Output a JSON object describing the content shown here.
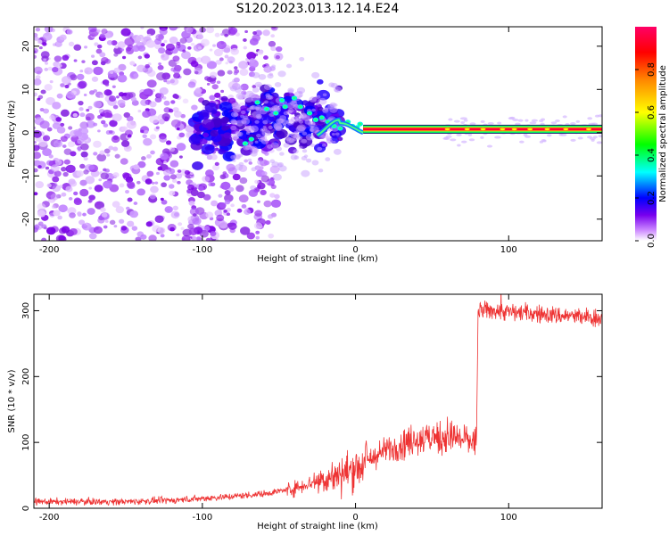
{
  "title": "S120.2023.013.12.14.E24",
  "chart_data": [
    {
      "type": "heatmap",
      "xlabel": "Height of straight line (km)",
      "ylabel": "Frequency (Hz)",
      "xlim": [
        -210,
        161
      ],
      "ylim": [
        -25,
        24.5
      ],
      "xticks": [
        -200,
        -100,
        0,
        100
      ],
      "yticks": [
        -20,
        -10,
        0,
        10,
        20
      ],
      "grid": false,
      "colorbar": {
        "label": "Normalized spectral amplitude",
        "range": [
          0.0,
          1.0
        ],
        "ticks": [
          0.0,
          0.2,
          0.4,
          0.6,
          0.8
        ],
        "colors": [
          "#ffffff",
          "#cc88ff",
          "#7700ee",
          "#0000ff",
          "#00ffff",
          "#00ff00",
          "#ffff00",
          "#ff8800",
          "#ff0000",
          "#ff0066"
        ]
      },
      "noise_region_x": [
        -210,
        -80
      ],
      "features": [
        {
          "x": [
            5,
            161
          ],
          "y": 0.8,
          "amplitude": 0.95,
          "shape": "constant tone line"
        },
        {
          "x": [
            -10,
            5
          ],
          "y": [
            1,
            3
          ],
          "amplitude": 0.45,
          "shape": "curved segment"
        },
        {
          "x": [
            -70,
            -10
          ],
          "y": [
            -5,
            9
          ],
          "amplitude": 0.35,
          "shape": "scattered blobs"
        }
      ]
    },
    {
      "type": "line",
      "xlabel": "Height of straight line (km)",
      "ylabel": "SNR (10 * v/v)",
      "xlim": [
        -210,
        161
      ],
      "ylim": [
        0,
        325
      ],
      "xticks": [
        -200,
        -100,
        0,
        100
      ],
      "yticks": [
        0,
        100,
        200,
        300
      ],
      "grid": false,
      "color": "#ee3333",
      "x": [
        -210,
        -180,
        -150,
        -120,
        -100,
        -80,
        -60,
        -40,
        -30,
        -20,
        -10,
        0,
        10,
        20,
        30,
        40,
        50,
        60,
        70,
        79,
        80,
        90,
        100,
        110,
        120,
        130,
        140,
        150,
        161
      ],
      "y": [
        10,
        10,
        10,
        12,
        15,
        18,
        22,
        30,
        38,
        45,
        50,
        62,
        75,
        88,
        98,
        105,
        107,
        108,
        105,
        100,
        300,
        300,
        298,
        297,
        295,
        293,
        292,
        290,
        289
      ]
    }
  ]
}
